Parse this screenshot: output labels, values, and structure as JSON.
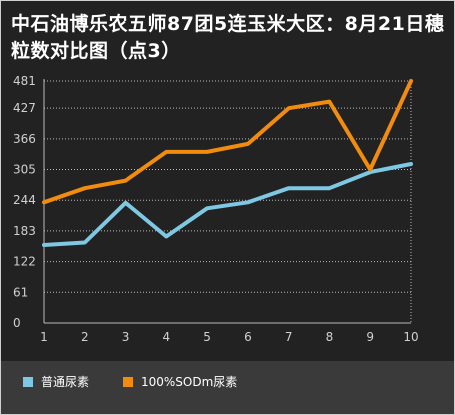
{
  "title": "中石油博乐农五师87团5连玉米大区：8月21日穗粒数对比图（点3）",
  "chart_data": {
    "type": "line",
    "title": "中石油博乐农五师87团5连玉米大区：8月21日穗粒数对比图（点3）",
    "x": [
      1,
      2,
      3,
      4,
      5,
      6,
      7,
      8,
      9,
      10
    ],
    "yticks": [
      0,
      61,
      122,
      183,
      244,
      305,
      366,
      427,
      481
    ],
    "ylim": [
      0,
      481
    ],
    "grid": true,
    "legend_position": "bottom",
    "series": [
      {
        "name": "普通尿素",
        "color": "#7ec8e3",
        "values": [
          155,
          160,
          239,
          172,
          228,
          240,
          268,
          268,
          300,
          316
        ]
      },
      {
        "name": "100%SODm尿素",
        "color": "#f28c0f",
        "values": [
          240,
          268,
          283,
          340,
          340,
          356,
          427,
          440,
          305,
          481
        ]
      }
    ]
  }
}
